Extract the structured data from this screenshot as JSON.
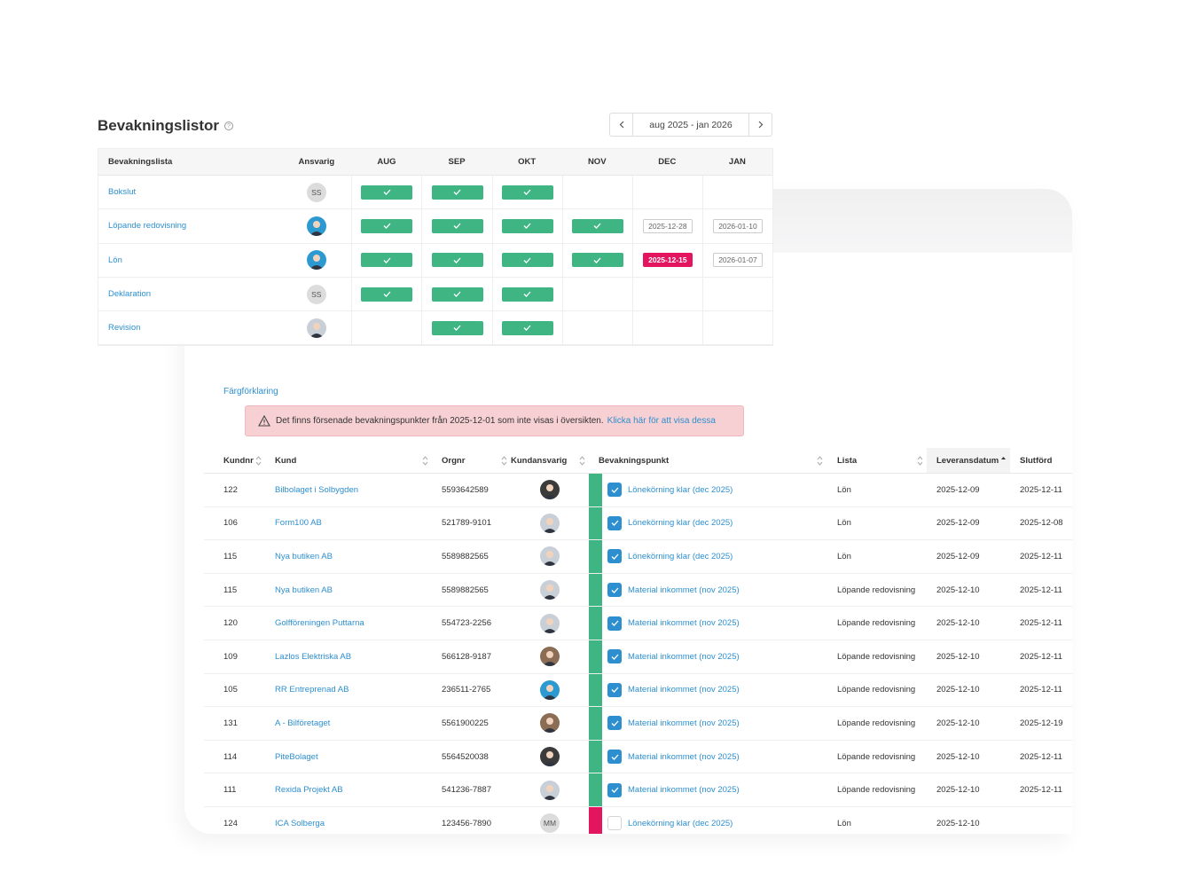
{
  "overview": {
    "title": "Bevakningslistor",
    "help_icon": "question-circle-icon",
    "period_label": "aug 2025 - jan 2026",
    "prev_icon": "chevron-left-icon",
    "next_icon": "chevron-right-icon",
    "columns": [
      "Bevakningslista",
      "Ansvarig",
      "AUG",
      "SEP",
      "OKT",
      "NOV",
      "DEC",
      "JAN"
    ],
    "rows": [
      {
        "name": "Bokslut",
        "avatar": {
          "type": "initials",
          "text": "SS"
        },
        "months": [
          {
            "s": "done"
          },
          {
            "s": "done"
          },
          {
            "s": "done"
          },
          {
            "s": ""
          },
          {
            "s": ""
          },
          {
            "s": ""
          }
        ]
      },
      {
        "name": "Löpande redovisning",
        "avatar": {
          "type": "blue"
        },
        "months": [
          {
            "s": "done"
          },
          {
            "s": "done"
          },
          {
            "s": "done"
          },
          {
            "s": "done"
          },
          {
            "s": "date",
            "d": "2025-12-28"
          },
          {
            "s": "date",
            "d": "2026-01-10"
          }
        ]
      },
      {
        "name": "Lön",
        "avatar": {
          "type": "blue"
        },
        "months": [
          {
            "s": "done"
          },
          {
            "s": "done"
          },
          {
            "s": "done"
          },
          {
            "s": "done"
          },
          {
            "s": "late",
            "d": "2025-12-15"
          },
          {
            "s": "date",
            "d": "2026-01-07"
          }
        ]
      },
      {
        "name": "Deklaration",
        "avatar": {
          "type": "initials",
          "text": "SS"
        },
        "months": [
          {
            "s": "done"
          },
          {
            "s": "done"
          },
          {
            "s": "done"
          },
          {
            "s": ""
          },
          {
            "s": ""
          },
          {
            "s": ""
          }
        ]
      },
      {
        "name": "Revision",
        "avatar": {
          "type": "gray"
        },
        "months": [
          {
            "s": ""
          },
          {
            "s": "done"
          },
          {
            "s": "done"
          },
          {
            "s": ""
          },
          {
            "s": ""
          },
          {
            "s": ""
          }
        ]
      }
    ]
  },
  "detail": {
    "legend_link": "Färgförklaring",
    "alert": {
      "icon": "warning-triangle-icon",
      "text": "Det finns försenade bevakningspunkter från 2025-12-01 som inte visas i översikten.",
      "link": "Klicka här för att visa dessa"
    },
    "columns": [
      "Kundnr",
      "Kund",
      "Orgnr",
      "Kundansvarig",
      "Bevakningspunkt",
      "Lista",
      "Leveransdatum",
      "Slutförd"
    ],
    "rows": [
      {
        "nr": "122",
        "kund": "Bilbolaget i Solbygden",
        "orgnr": "5593642589",
        "av": "dark",
        "status": "green",
        "checked": true,
        "punkt": "Lönekörning klar (dec 2025)",
        "lista": "Lön",
        "lev": "2025-12-09",
        "slut": "2025-12-11"
      },
      {
        "nr": "106",
        "kund": "Form100 AB",
        "orgnr": "521789-9101",
        "av": "gray",
        "status": "green",
        "checked": true,
        "punkt": "Lönekörning klar (dec 2025)",
        "lista": "Lön",
        "lev": "2025-12-09",
        "slut": "2025-12-08"
      },
      {
        "nr": "115",
        "kund": "Nya butiken AB",
        "orgnr": "5589882565",
        "av": "gray",
        "status": "green",
        "checked": true,
        "punkt": "Lönekörning klar (dec 2025)",
        "lista": "Lön",
        "lev": "2025-12-09",
        "slut": "2025-12-11"
      },
      {
        "nr": "115",
        "kund": "Nya butiken AB",
        "orgnr": "5589882565",
        "av": "gray",
        "status": "green",
        "checked": true,
        "punkt": "Material inkommet (nov 2025)",
        "lista": "Löpande redovisning",
        "lev": "2025-12-10",
        "slut": "2025-12-11"
      },
      {
        "nr": "120",
        "kund": "Golfföreningen Puttarna",
        "orgnr": "554723-2256",
        "av": "gray",
        "status": "green",
        "checked": true,
        "punkt": "Material inkommet (nov 2025)",
        "lista": "Löpande redovisning",
        "lev": "2025-12-10",
        "slut": "2025-12-11"
      },
      {
        "nr": "109",
        "kund": "Lazlos Elektriska AB",
        "orgnr": "566128-9187",
        "av": "brown",
        "status": "green",
        "checked": true,
        "punkt": "Material inkommet (nov 2025)",
        "lista": "Löpande redovisning",
        "lev": "2025-12-10",
        "slut": "2025-12-11"
      },
      {
        "nr": "105",
        "kund": "RR Entreprenad AB",
        "orgnr": "236511-2765",
        "av": "blue",
        "status": "green",
        "checked": true,
        "punkt": "Material inkommet (nov 2025)",
        "lista": "Löpande redovisning",
        "lev": "2025-12-10",
        "slut": "2025-12-11"
      },
      {
        "nr": "131",
        "kund": "A - Bilföretaget",
        "orgnr": "5561900225",
        "av": "brown",
        "status": "green",
        "checked": true,
        "punkt": "Material inkommet (nov 2025)",
        "lista": "Löpande redovisning",
        "lev": "2025-12-10",
        "slut": "2025-12-19"
      },
      {
        "nr": "114",
        "kund": "PiteBolaget",
        "orgnr": "5564520038",
        "av": "dark",
        "status": "green",
        "checked": true,
        "punkt": "Material inkommet (nov 2025)",
        "lista": "Löpande redovisning",
        "lev": "2025-12-10",
        "slut": "2025-12-11"
      },
      {
        "nr": "111",
        "kund": "Rexida Projekt AB",
        "orgnr": "541236-7887",
        "av": "gray",
        "status": "green",
        "checked": true,
        "punkt": "Material inkommet (nov 2025)",
        "lista": "Löpande redovisning",
        "lev": "2025-12-10",
        "slut": "2025-12-11"
      },
      {
        "nr": "124",
        "kund": "ICA Solberga",
        "orgnr": "123456-7890",
        "av": "initials",
        "av_text": "MM",
        "status": "red",
        "checked": false,
        "punkt": "Lönekörning klar (dec 2025)",
        "lista": "Lön",
        "lev": "2025-12-10",
        "slut": ""
      }
    ],
    "colors": {
      "green": "#3fb584",
      "red": "#e3155e",
      "link": "#2d8fcf"
    }
  }
}
